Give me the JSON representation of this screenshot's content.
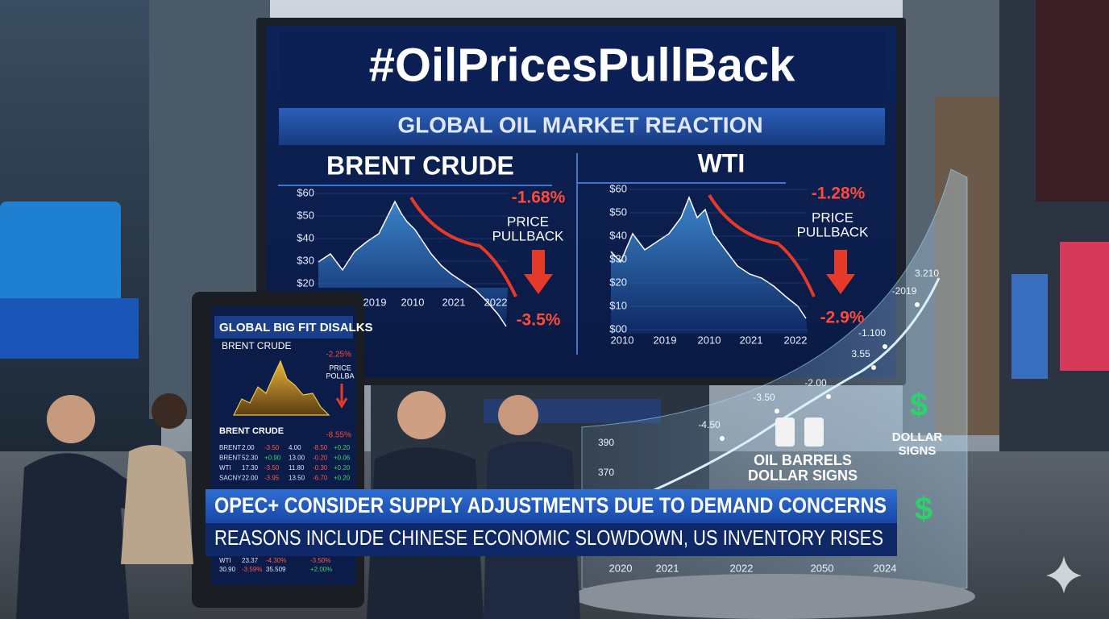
{
  "headline": "#OilPricesPullBack",
  "subheadline": "GLOBAL OIL MARKET REACTION",
  "panels": [
    {
      "title": "BRENT CRUDE",
      "y_labels": [
        "$60",
        "$50",
        "$40",
        "$30",
        "$20"
      ],
      "x_labels": [
        "2019",
        "2010",
        "2021",
        "2022"
      ],
      "change": "-1.68%",
      "note": [
        "PRICE",
        "PULLBACK"
      ],
      "end_change": "-3.5%"
    },
    {
      "title": "WTI",
      "y_labels": [
        "$60",
        "$50",
        "$40",
        "$30",
        "$20",
        "$10",
        "$00"
      ],
      "x_labels": [
        "2010",
        "2019",
        "2010",
        "2021",
        "2022"
      ],
      "change": "-1.28%",
      "note": [
        "PRICE",
        "PULLBACK"
      ],
      "end_change": "-2.9%"
    }
  ],
  "kiosk": {
    "title": "GLOBAL BIG FIT DISALKS",
    "chart_title": "BRENT CRUDE",
    "chart_change": "-2.25%",
    "chart_note": [
      "PRICE",
      "POLLBA"
    ],
    "table_title": "BRENT CRUDE",
    "table_change": "-8.55%",
    "rows": [
      [
        "BRENT",
        "2.00",
        "-3.50",
        "4.00",
        "-8.50",
        "+0.20"
      ],
      [
        "BRENT",
        "52.30",
        "+0.90",
        "13.00",
        "-0.20",
        "+0.06"
      ],
      [
        "WTI",
        "17.30",
        "-3.50",
        "11.80",
        "-0.30",
        "+0.20"
      ],
      [
        "SACNY",
        "22.00",
        "-3.95",
        "13.50",
        "-6.70",
        "+0.20"
      ],
      [
        "WTI",
        "23.37",
        "-4.30%",
        "-3.50%"
      ],
      [
        "30.90",
        "-3.59%",
        "35.509",
        "+2.00%"
      ]
    ]
  },
  "lower_third": {
    "line1": "OPEC+ CONSIDER SUPPLY ADJUSTMENTS DUE TO DEMAND CONCERNS",
    "line2": "REASONS INCLUDE CHINESE ECONOMIC SLOWDOWN, US INVENTORY RISES"
  },
  "hologram": {
    "points": [
      "-4.50",
      "-3.50",
      "-2.00",
      "3.55",
      "-1.100",
      "-2019",
      "3.210",
      "390",
      "370"
    ],
    "barrels_label": [
      "OIL BARRELS",
      "DOLLAR SIGNS"
    ],
    "dollar_label": [
      "DOLLAR",
      "SIGNS"
    ],
    "x_labels": [
      "2020",
      "2021",
      "2022",
      "2050",
      "2024"
    ]
  }
}
